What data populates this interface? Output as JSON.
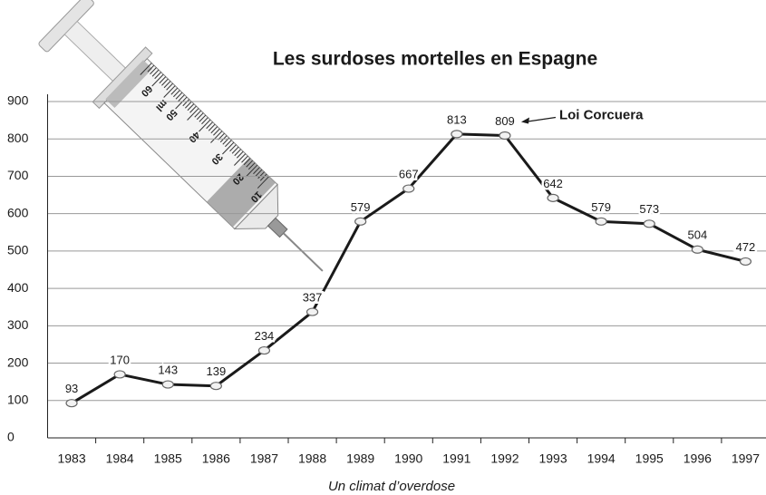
{
  "chart_data": {
    "type": "line",
    "title": "Les surdoses mortelles en Espagne",
    "caption": "Un climat d’overdose",
    "categories": [
      "1983",
      "1984",
      "1985",
      "1986",
      "1987",
      "1988",
      "1989",
      "1990",
      "1991",
      "1992",
      "1993",
      "1994",
      "1995",
      "1996",
      "1997"
    ],
    "values": [
      93,
      170,
      143,
      139,
      234,
      337,
      579,
      667,
      813,
      809,
      642,
      579,
      573,
      504,
      472
    ],
    "color": "#1a1a1a",
    "ylim": [
      0,
      900
    ],
    "yticks": [
      0,
      100,
      200,
      300,
      400,
      500,
      600,
      700,
      800,
      900
    ],
    "grid": true,
    "annotation": {
      "text": "Loi Corcuera",
      "category": "1992"
    }
  },
  "illustration": {
    "labels": [
      "60",
      "ml",
      "50",
      "40",
      "30",
      "20",
      "10"
    ]
  }
}
